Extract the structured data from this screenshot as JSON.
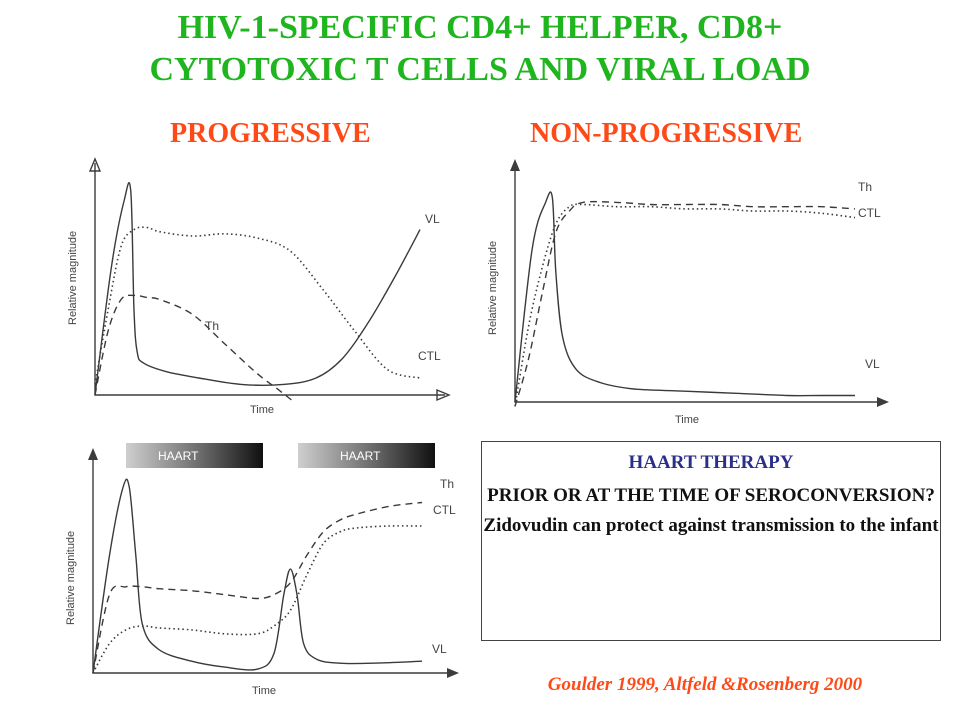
{
  "title_line1": "HIV-1-SPECIFIC  CD4+ HELPER, CD8+",
  "title_line2": "CYTOTOXIC T CELLS AND VIRAL LOAD",
  "subtitles": {
    "left": "PROGRESSIVE",
    "right": "NON-PROGRESSIVE"
  },
  "colors": {
    "title": "#1fb51f",
    "subtitle": "#ff4a17",
    "box_heading": "#2a2f8a",
    "citation": "#ff4a17"
  },
  "haart_label": "HAART",
  "therapy_box": {
    "heading": "HAART THERAPY",
    "line1": "PRIOR OR AT THE TIME OF SEROCONVERSION?",
    "line2": "Zidovudin can protect against transmission to the infant"
  },
  "citation": "Goulder 1999, Altfeld &Rosenberg 2000",
  "chart_data": [
    {
      "type": "line",
      "name": "progressive",
      "xlabel": "Time",
      "ylabel": "Relative magnitude",
      "xlim": [
        0,
        100
      ],
      "ylim": [
        0,
        100
      ],
      "series": [
        {
          "name": "VL",
          "style": "solid",
          "x": [
            0,
            5,
            9,
            11,
            12,
            13,
            15,
            22,
            32,
            45,
            58,
            68,
            76,
            84,
            92,
            100
          ],
          "y": [
            0,
            60,
            92,
            96,
            40,
            20,
            15,
            11,
            8,
            5,
            5,
            8,
            17,
            34,
            55,
            78
          ]
        },
        {
          "name": "Th",
          "style": "dashed",
          "x": [
            0,
            4,
            8,
            12,
            16,
            20,
            30,
            40,
            50,
            56,
            61
          ],
          "y": [
            0,
            30,
            45,
            47,
            46,
            45,
            38,
            24,
            10,
            3,
            -3
          ]
        },
        {
          "name": "CTL",
          "style": "dotted",
          "x": [
            0,
            4,
            8,
            12,
            16,
            20,
            30,
            40,
            50,
            60,
            70,
            80,
            90,
            100
          ],
          "y": [
            5,
            40,
            70,
            78,
            79,
            77,
            75,
            76,
            74,
            68,
            50,
            30,
            12,
            8
          ]
        }
      ]
    },
    {
      "type": "line",
      "name": "non-progressive",
      "xlabel": "Time",
      "ylabel": "Relative magnitude",
      "xlim": [
        0,
        100
      ],
      "ylim": [
        0,
        100
      ],
      "series": [
        {
          "name": "VL",
          "style": "solid",
          "x": [
            0,
            5,
            9,
            11,
            12,
            14,
            18,
            25,
            35,
            50,
            65,
            80,
            90,
            100
          ],
          "y": [
            0,
            70,
            92,
            94,
            60,
            30,
            15,
            9,
            6,
            5,
            4,
            3,
            3,
            3
          ]
        },
        {
          "name": "Th",
          "style": "dashed",
          "x": [
            0,
            4,
            8,
            12,
            16,
            20,
            30,
            40,
            50,
            60,
            70,
            80,
            90,
            100
          ],
          "y": [
            -2,
            20,
            50,
            78,
            88,
            92,
            92,
            91,
            91,
            91,
            90,
            90,
            90,
            89
          ]
        },
        {
          "name": "CTL",
          "style": "dotted",
          "x": [
            0,
            4,
            8,
            12,
            16,
            20,
            30,
            40,
            50,
            60,
            70,
            80,
            90,
            100
          ],
          "y": [
            -2,
            35,
            62,
            82,
            90,
            91,
            90,
            90,
            89,
            89,
            88,
            88,
            87,
            85
          ]
        }
      ]
    },
    {
      "type": "line",
      "name": "haart",
      "xlabel": "Time",
      "ylabel": "Relative magnitude",
      "xlim": [
        0,
        100
      ],
      "ylim": [
        0,
        100
      ],
      "annotations": [
        "HAART",
        "HAART"
      ],
      "series": [
        {
          "name": "VL",
          "style": "solid",
          "x": [
            0,
            5,
            9,
            11,
            13,
            15,
            20,
            30,
            40,
            50,
            55,
            58,
            60,
            62,
            64,
            68,
            75,
            85,
            100
          ],
          "y": [
            0,
            60,
            94,
            95,
            60,
            25,
            12,
            6,
            3,
            2,
            10,
            40,
            53,
            40,
            15,
            7,
            5,
            5,
            6
          ]
        },
        {
          "name": "Th",
          "style": "dashed",
          "x": [
            0,
            5,
            10,
            15,
            20,
            30,
            40,
            50,
            55,
            60,
            65,
            70,
            75,
            80,
            90,
            100
          ],
          "y": [
            0,
            40,
            44,
            44,
            43,
            42,
            40,
            38,
            40,
            46,
            60,
            72,
            78,
            81,
            85,
            87
          ]
        },
        {
          "name": "CTL",
          "style": "dotted",
          "x": [
            0,
            5,
            10,
            15,
            20,
            30,
            40,
            50,
            55,
            60,
            65,
            70,
            75,
            80,
            90,
            100
          ],
          "y": [
            0,
            15,
            22,
            24,
            23,
            22,
            20,
            20,
            24,
            32,
            50,
            66,
            72,
            74,
            75,
            75
          ]
        }
      ]
    }
  ]
}
